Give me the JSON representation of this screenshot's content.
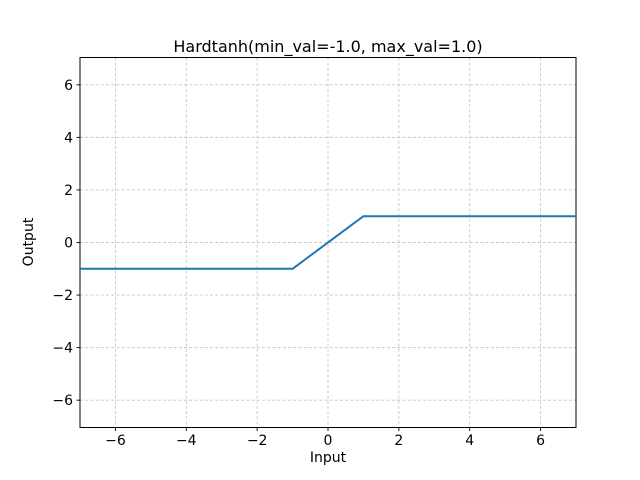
{
  "chart_data": {
    "type": "line",
    "title": "Hardtanh(min_val=-1.0, max_val=1.0)",
    "xlabel": "Input",
    "ylabel": "Output",
    "xlim": [
      -7,
      7
    ],
    "ylim": [
      -7.04,
      7.04
    ],
    "xticks": {
      "values": [
        -6,
        -4,
        -2,
        0,
        2,
        4,
        6
      ],
      "labels": [
        "−6",
        "−4",
        "−2",
        "0",
        "2",
        "4",
        "6"
      ]
    },
    "yticks": {
      "values": [
        -6,
        -4,
        -2,
        0,
        2,
        4,
        6
      ],
      "labels": [
        "−6",
        "−4",
        "−2",
        "0",
        "2",
        "4",
        "6"
      ]
    },
    "grid": true,
    "grid_style": "dashed",
    "legend": "none",
    "colors": {
      "line": "#1f77b4",
      "grid": "#c6c6c6",
      "frame": "#000000",
      "background": "#ffffff"
    },
    "series": [
      {
        "name": "Hardtanh",
        "color": "#1f77b4",
        "points": [
          [
            -7,
            -1
          ],
          [
            -1,
            -1
          ],
          [
            1,
            1
          ],
          [
            7,
            1
          ]
        ]
      }
    ]
  }
}
